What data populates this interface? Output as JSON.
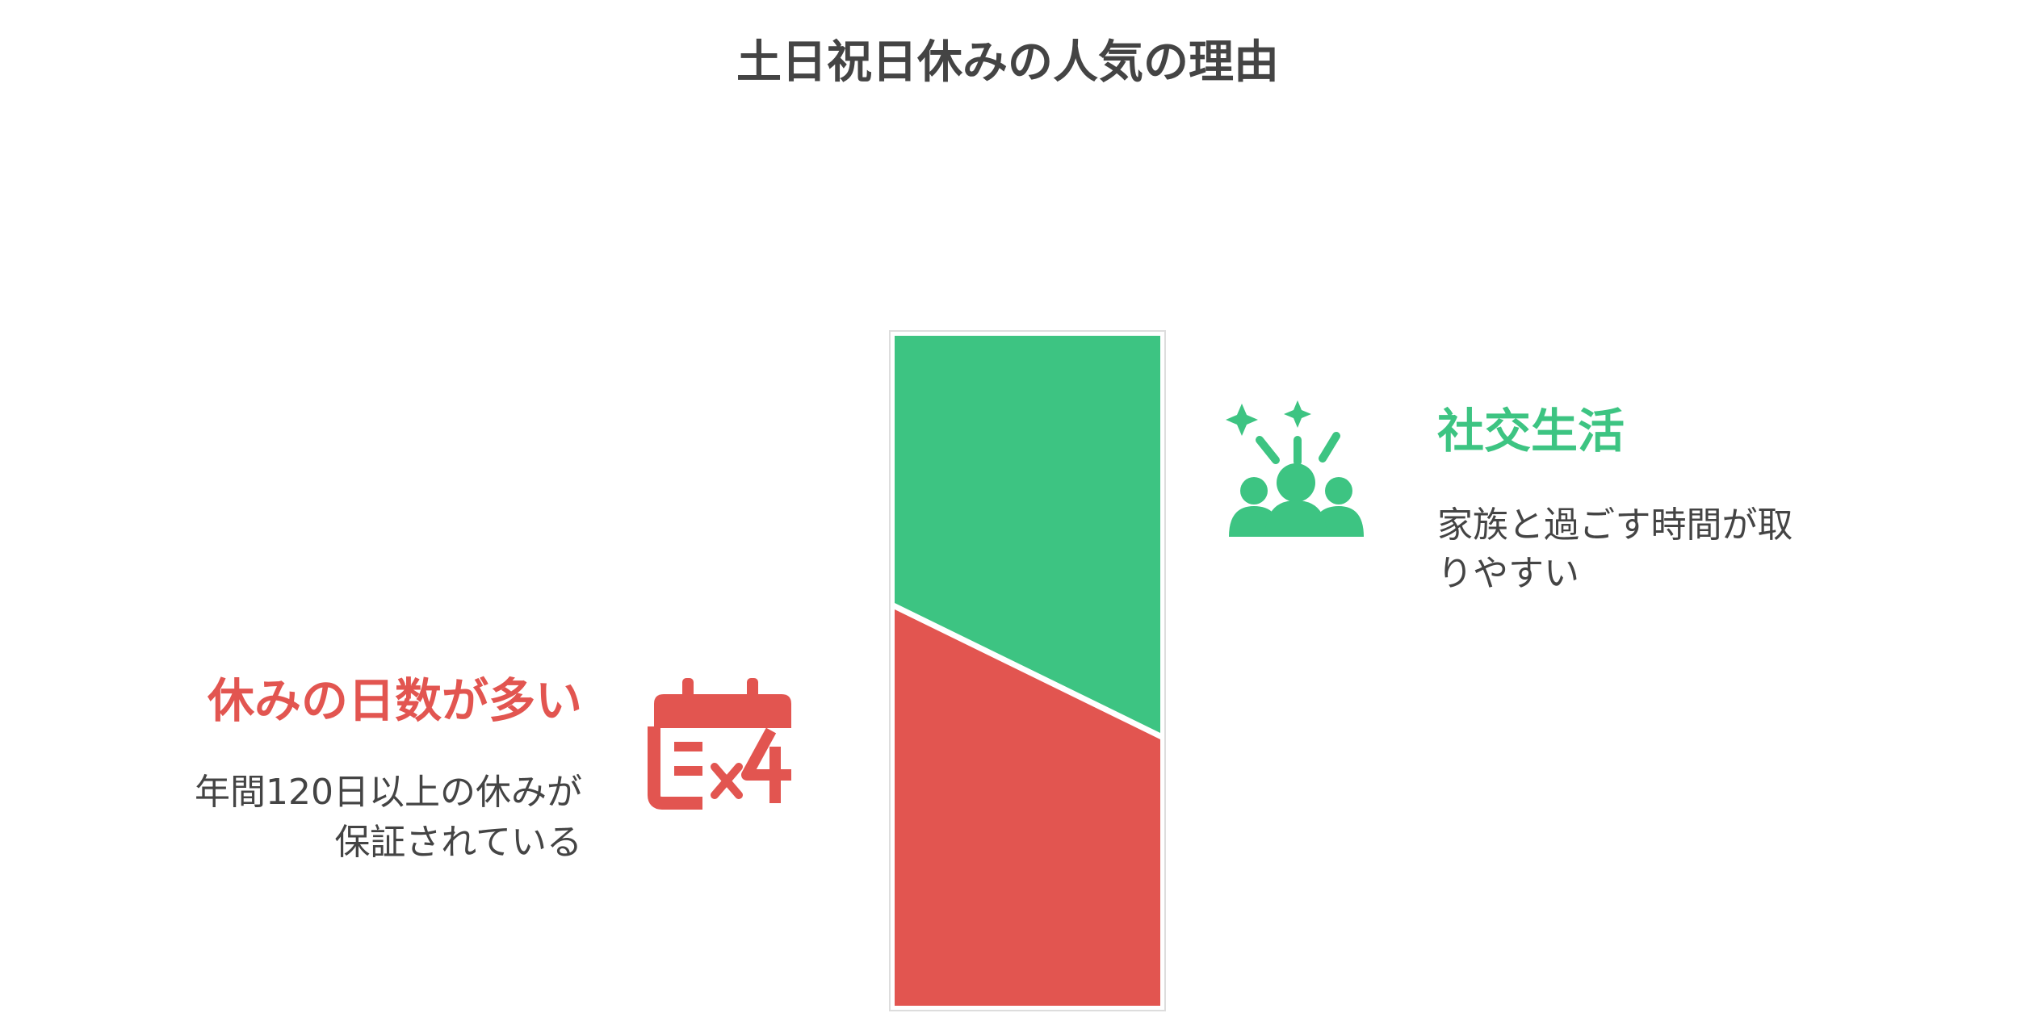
{
  "title": "土日祝日休みの人気の理由",
  "items": [
    {
      "heading": "社交生活",
      "description": [
        "家族と過ごす時間が取",
        "りやすい"
      ]
    },
    {
      "heading": "休みの日数が多い",
      "description": [
        "年間120日以上の休みが",
        "保証されている"
      ]
    }
  ]
}
